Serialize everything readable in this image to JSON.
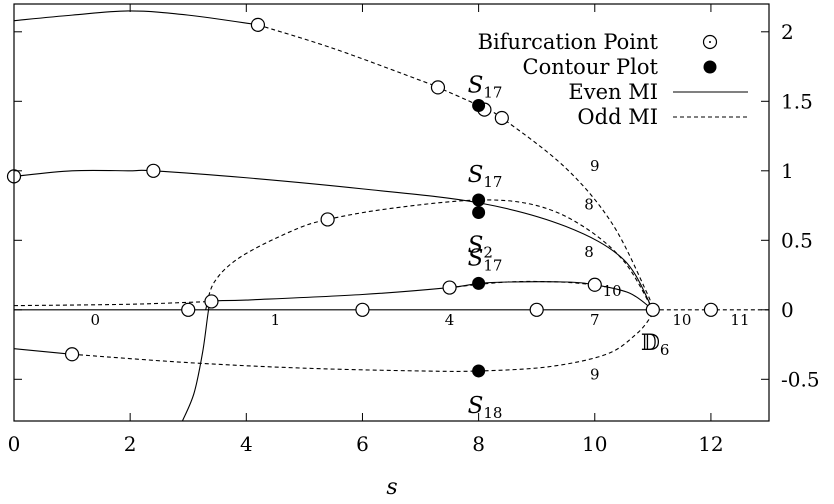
{
  "chart_data": {
    "type": "line",
    "title": "",
    "xlabel": "s",
    "ylabel": "",
    "xlim": [
      0,
      13
    ],
    "ylim": [
      -0.8,
      2.2
    ],
    "x_ticks": [
      "0",
      "2",
      "4",
      "6",
      "8",
      "10",
      "12"
    ],
    "y_ticks": [
      "-0.5",
      "0",
      "0.5",
      "1",
      "1.5",
      "2"
    ],
    "y_tick_values": [
      -0.5,
      0,
      0.5,
      1,
      1.5,
      2
    ],
    "x_tick_values": [
      0,
      2,
      4,
      6,
      8,
      10,
      12
    ],
    "legend": {
      "position": "top-right",
      "entries": [
        {
          "label": "Bifurcation Point",
          "kind": "open-circle"
        },
        {
          "label": "Contour Plot",
          "kind": "filled-circle"
        },
        {
          "label": "Even MI",
          "kind": "solid"
        },
        {
          "label": "Odd MI",
          "kind": "dashed"
        }
      ]
    },
    "series": [
      {
        "style": "solid",
        "points": [
          [
            0,
            2.08
          ],
          [
            1,
            2.12
          ],
          [
            2,
            2.15
          ],
          [
            3,
            2.12
          ],
          [
            4.2,
            2.05
          ]
        ]
      },
      {
        "style": "dashed",
        "points": [
          [
            4.2,
            2.05
          ],
          [
            5.5,
            1.88
          ],
          [
            7,
            1.65
          ],
          [
            7.3,
            1.6
          ],
          [
            8,
            1.47
          ],
          [
            8.4,
            1.38
          ],
          [
            9.5,
            1.02
          ],
          [
            10.3,
            0.62
          ],
          [
            10.9,
            0.12
          ],
          [
            11,
            0
          ]
        ]
      },
      {
        "style": "solid",
        "points": [
          [
            0,
            0.96
          ],
          [
            1,
            1.0
          ],
          [
            2,
            1.0
          ],
          [
            2.4,
            1.0
          ],
          [
            4,
            0.95
          ],
          [
            6,
            0.87
          ],
          [
            8,
            0.77
          ],
          [
            9.5,
            0.6
          ],
          [
            10.5,
            0.36
          ],
          [
            11,
            0
          ]
        ]
      },
      {
        "style": "dashed",
        "points": [
          [
            3.3,
            0
          ],
          [
            3.45,
            0.2
          ],
          [
            3.9,
            0.38
          ],
          [
            4.8,
            0.57
          ],
          [
            5.4,
            0.65
          ],
          [
            6.5,
            0.73
          ],
          [
            8,
            0.79
          ],
          [
            9,
            0.75
          ],
          [
            9.8,
            0.6
          ],
          [
            10.5,
            0.35
          ],
          [
            11,
            0
          ]
        ]
      },
      {
        "style": "solid",
        "points": [
          [
            2.9,
            -0.8
          ],
          [
            3.1,
            -0.6
          ],
          [
            3.25,
            -0.3
          ],
          [
            3.35,
            0
          ],
          [
            3.4,
            0.06
          ],
          [
            4,
            0.07
          ],
          [
            6,
            0.11
          ],
          [
            7.5,
            0.16
          ],
          [
            8,
            0.19
          ],
          [
            8.5,
            0.2
          ],
          [
            9.5,
            0.2
          ],
          [
            10,
            0.18
          ],
          [
            10.6,
            0.12
          ],
          [
            11,
            0
          ]
        ]
      },
      {
        "style": "dashed",
        "points": [
          [
            0,
            0.03
          ],
          [
            2,
            0.04
          ],
          [
            3.4,
            0.06
          ]
        ]
      },
      {
        "style": "dashed",
        "points": [
          [
            7.5,
            0.16
          ],
          [
            8.5,
            0.2
          ],
          [
            9.4,
            0.2
          ],
          [
            10,
            0.18
          ]
        ]
      },
      {
        "style": "solid",
        "points": [
          [
            0,
            0
          ],
          [
            11,
            0
          ]
        ]
      },
      {
        "style": "dashed",
        "points": [
          [
            11,
            0
          ],
          [
            13,
            0
          ]
        ]
      },
      {
        "style": "solid",
        "points": [
          [
            0,
            -0.28
          ],
          [
            1,
            -0.32
          ]
        ]
      },
      {
        "style": "dashed",
        "points": [
          [
            1,
            -0.32
          ],
          [
            3,
            -0.38
          ],
          [
            5,
            -0.42
          ],
          [
            7,
            -0.44
          ],
          [
            8,
            -0.44
          ],
          [
            9.2,
            -0.41
          ],
          [
            10.2,
            -0.32
          ],
          [
            10.7,
            -0.18
          ],
          [
            10.95,
            -0.06
          ],
          [
            11,
            0
          ]
        ]
      }
    ],
    "bifurcation_points": [
      [
        4.2,
        2.05
      ],
      [
        7.3,
        1.6
      ],
      [
        8.1,
        1.44
      ],
      [
        8.4,
        1.38
      ],
      [
        0,
        0.96
      ],
      [
        2.4,
        1.0
      ],
      [
        5.4,
        0.65
      ],
      [
        3.4,
        0.06
      ],
      [
        7.5,
        0.16
      ],
      [
        10,
        0.18
      ],
      [
        3,
        0
      ],
      [
        6,
        0
      ],
      [
        9,
        0
      ],
      [
        11,
        0
      ],
      [
        12,
        0
      ],
      [
        1,
        -0.32
      ]
    ],
    "contour_points": [
      {
        "x": 8,
        "y": 1.47,
        "label": "S",
        "sub": "17"
      },
      {
        "x": 8,
        "y": 0.79,
        "label": "S",
        "sub": "17"
      },
      {
        "x": 8,
        "y": 0.7,
        "label": "S",
        "sub": "2"
      },
      {
        "x": 8,
        "y": 0.19,
        "label": "S",
        "sub": "17"
      },
      {
        "x": 8,
        "y": -0.44,
        "label": "S",
        "sub": "18"
      }
    ],
    "annotations": [
      {
        "text": "9",
        "x": 10.0,
        "y": 1.0
      },
      {
        "text": "8",
        "x": 9.9,
        "y": 0.72
      },
      {
        "text": "8",
        "x": 9.9,
        "y": 0.38
      },
      {
        "text": "10",
        "x": 10.3,
        "y": 0.1
      },
      {
        "text": "0",
        "x": 1.4,
        "y": -0.11
      },
      {
        "text": "1",
        "x": 4.5,
        "y": -0.11
      },
      {
        "text": "4",
        "x": 7.5,
        "y": -0.11
      },
      {
        "text": "7",
        "x": 10.0,
        "y": -0.11
      },
      {
        "text": "10",
        "x": 11.5,
        "y": -0.11
      },
      {
        "text": "11",
        "x": 12.5,
        "y": -0.11
      },
      {
        "text": "9",
        "x": 10.0,
        "y": -0.5
      }
    ],
    "special_label": {
      "text": "𝔻",
      "sub": "6",
      "x": 11,
      "y": 0
    }
  }
}
